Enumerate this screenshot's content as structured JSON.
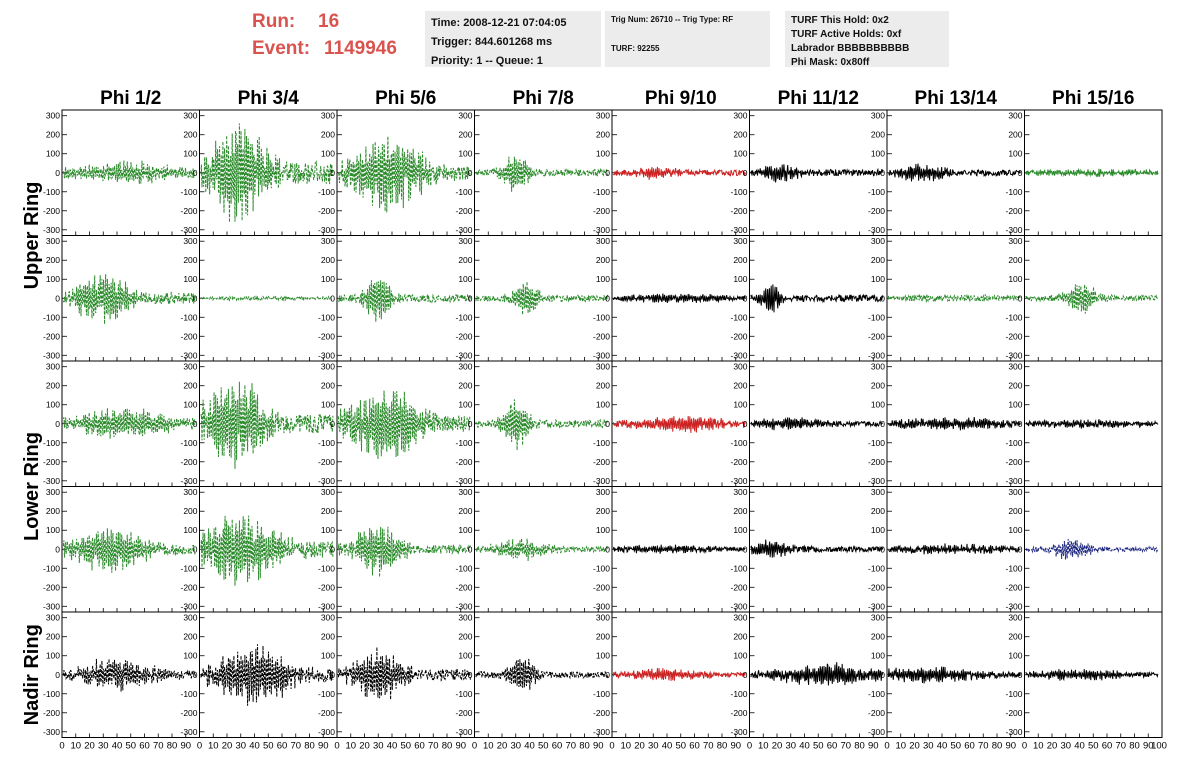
{
  "header": {
    "run_label": "Run:",
    "run_value": "16",
    "event_label": "Event:",
    "event_value": "1149946"
  },
  "info_time": {
    "time": "Time: 2008-12-21 07:04:05",
    "trigger": "Trigger: 844.601268 ms",
    "priority": "Priority: 1 -- Queue: 1"
  },
  "info_trig": {
    "trig": "Trig Num: 26710 -- Trig Type: RF",
    "turf": "TURF: 92255"
  },
  "info_turf": {
    "hold": "TURF This Hold: 0x2",
    "active": "TURF Active Holds: 0xf",
    "labrador": "Labrador BBBBBBBBBB",
    "mask": "Phi Mask: 0x80ff"
  },
  "chart_data": {
    "type": "line",
    "columns": [
      "Phi 1/2",
      "Phi 3/4",
      "Phi 5/6",
      "Phi 7/8",
      "Phi 9/10",
      "Phi 11/12",
      "Phi 13/14",
      "Phi 15/16"
    ],
    "row_groups": [
      {
        "label": "Upper Ring",
        "rows": [
          0,
          1
        ]
      },
      {
        "label": "Lower Ring",
        "rows": [
          2,
          3
        ]
      },
      {
        "label": "Nadir Ring",
        "rows": [
          4
        ]
      }
    ],
    "ylim": [
      -330,
      330
    ],
    "yticks": [
      -300,
      -200,
      -100,
      0,
      100,
      200,
      300
    ],
    "xlim": [
      0,
      100
    ],
    "xticks": [
      0,
      10,
      20,
      30,
      40,
      50,
      60,
      70,
      80,
      90
    ],
    "last_xtick": "100",
    "colors": {
      "green": "#2a8a2a",
      "red": "#cc2222",
      "black": "#000000",
      "blue": "#1a237e"
    },
    "panels": [
      [
        {
          "color": "green",
          "dashed": true,
          "amp": 55,
          "peak": 0.48,
          "width": 0.45,
          "noise": 18
        },
        {
          "color": "green",
          "dashed": true,
          "amp": 290,
          "peak": 0.28,
          "width": 0.22,
          "noise": 60
        },
        {
          "color": "green",
          "dashed": true,
          "amp": 200,
          "peak": 0.38,
          "width": 0.3,
          "noise": 40
        },
        {
          "color": "green",
          "dashed": true,
          "amp": 95,
          "peak": 0.3,
          "width": 0.12,
          "noise": 18
        },
        {
          "color": "red",
          "dashed": false,
          "amp": 35,
          "peak": 0.32,
          "width": 0.15,
          "noise": 15
        },
        {
          "color": "black",
          "dashed": false,
          "amp": 50,
          "peak": 0.2,
          "width": 0.15,
          "noise": 18
        },
        {
          "color": "black",
          "dashed": false,
          "amp": 45,
          "peak": 0.25,
          "width": 0.2,
          "noise": 16
        },
        {
          "color": "green",
          "dashed": false,
          "amp": 15,
          "peak": 0.5,
          "width": 0.6,
          "noise": 12
        }
      ],
      [
        {
          "color": "green",
          "dashed": true,
          "amp": 140,
          "peak": 0.3,
          "width": 0.2,
          "noise": 30
        },
        {
          "color": "green",
          "dashed": true,
          "amp": 8,
          "peak": 0.5,
          "width": 0.6,
          "noise": 5
        },
        {
          "color": "green",
          "dashed": true,
          "amp": 140,
          "peak": 0.3,
          "width": 0.1,
          "noise": 20
        },
        {
          "color": "green",
          "dashed": true,
          "amp": 100,
          "peak": 0.38,
          "width": 0.1,
          "noise": 18
        },
        {
          "color": "black",
          "dashed": false,
          "amp": 20,
          "peak": 0.5,
          "width": 0.5,
          "noise": 10
        },
        {
          "color": "black",
          "dashed": false,
          "amp": 90,
          "peak": 0.15,
          "width": 0.08,
          "noise": 18
        },
        {
          "color": "green",
          "dashed": true,
          "amp": 15,
          "peak": 0.5,
          "width": 0.6,
          "noise": 10
        },
        {
          "color": "green",
          "dashed": true,
          "amp": 100,
          "peak": 0.42,
          "width": 0.12,
          "noise": 15
        }
      ],
      [
        {
          "color": "green",
          "dashed": true,
          "amp": 80,
          "peak": 0.45,
          "width": 0.4,
          "noise": 20
        },
        {
          "color": "green",
          "dashed": true,
          "amp": 230,
          "peak": 0.25,
          "width": 0.25,
          "noise": 50
        },
        {
          "color": "green",
          "dashed": true,
          "amp": 210,
          "peak": 0.35,
          "width": 0.28,
          "noise": 40
        },
        {
          "color": "green",
          "dashed": true,
          "amp": 140,
          "peak": 0.3,
          "width": 0.1,
          "noise": 20
        },
        {
          "color": "red",
          "dashed": false,
          "amp": 40,
          "peak": 0.5,
          "width": 0.4,
          "noise": 15
        },
        {
          "color": "black",
          "dashed": false,
          "amp": 30,
          "peak": 0.3,
          "width": 0.3,
          "noise": 12
        },
        {
          "color": "black",
          "dashed": false,
          "amp": 30,
          "peak": 0.5,
          "width": 0.5,
          "noise": 12
        },
        {
          "color": "black",
          "dashed": false,
          "amp": 18,
          "peak": 0.5,
          "width": 0.5,
          "noise": 10
        }
      ],
      [
        {
          "color": "green",
          "dashed": true,
          "amp": 120,
          "peak": 0.35,
          "width": 0.3,
          "noise": 25
        },
        {
          "color": "green",
          "dashed": true,
          "amp": 190,
          "peak": 0.3,
          "width": 0.3,
          "noise": 45
        },
        {
          "color": "green",
          "dashed": true,
          "amp": 130,
          "peak": 0.3,
          "width": 0.2,
          "noise": 25
        },
        {
          "color": "green",
          "dashed": true,
          "amp": 60,
          "peak": 0.35,
          "width": 0.2,
          "noise": 15
        },
        {
          "color": "black",
          "dashed": false,
          "amp": 20,
          "peak": 0.4,
          "width": 0.4,
          "noise": 10
        },
        {
          "color": "black",
          "dashed": false,
          "amp": 45,
          "peak": 0.15,
          "width": 0.2,
          "noise": 14
        },
        {
          "color": "black",
          "dashed": false,
          "amp": 22,
          "peak": 0.5,
          "width": 0.5,
          "noise": 12
        },
        {
          "color": "blue",
          "dashed": true,
          "amp": 65,
          "peak": 0.35,
          "width": 0.15,
          "noise": 12
        }
      ],
      [
        {
          "color": "black",
          "dashed": true,
          "amp": 80,
          "peak": 0.4,
          "width": 0.3,
          "noise": 22
        },
        {
          "color": "black",
          "dashed": true,
          "amp": 150,
          "peak": 0.4,
          "width": 0.3,
          "noise": 35
        },
        {
          "color": "black",
          "dashed": true,
          "amp": 140,
          "peak": 0.3,
          "width": 0.2,
          "noise": 30
        },
        {
          "color": "black",
          "dashed": true,
          "amp": 120,
          "peak": 0.35,
          "width": 0.1,
          "noise": 18
        },
        {
          "color": "red",
          "dashed": false,
          "amp": 30,
          "peak": 0.4,
          "width": 0.3,
          "noise": 12
        },
        {
          "color": "black",
          "dashed": false,
          "amp": 60,
          "peak": 0.6,
          "width": 0.4,
          "noise": 18
        },
        {
          "color": "black",
          "dashed": false,
          "amp": 40,
          "peak": 0.3,
          "width": 0.4,
          "noise": 14
        },
        {
          "color": "black",
          "dashed": false,
          "amp": 25,
          "peak": 0.4,
          "width": 0.4,
          "noise": 12
        }
      ]
    ]
  }
}
